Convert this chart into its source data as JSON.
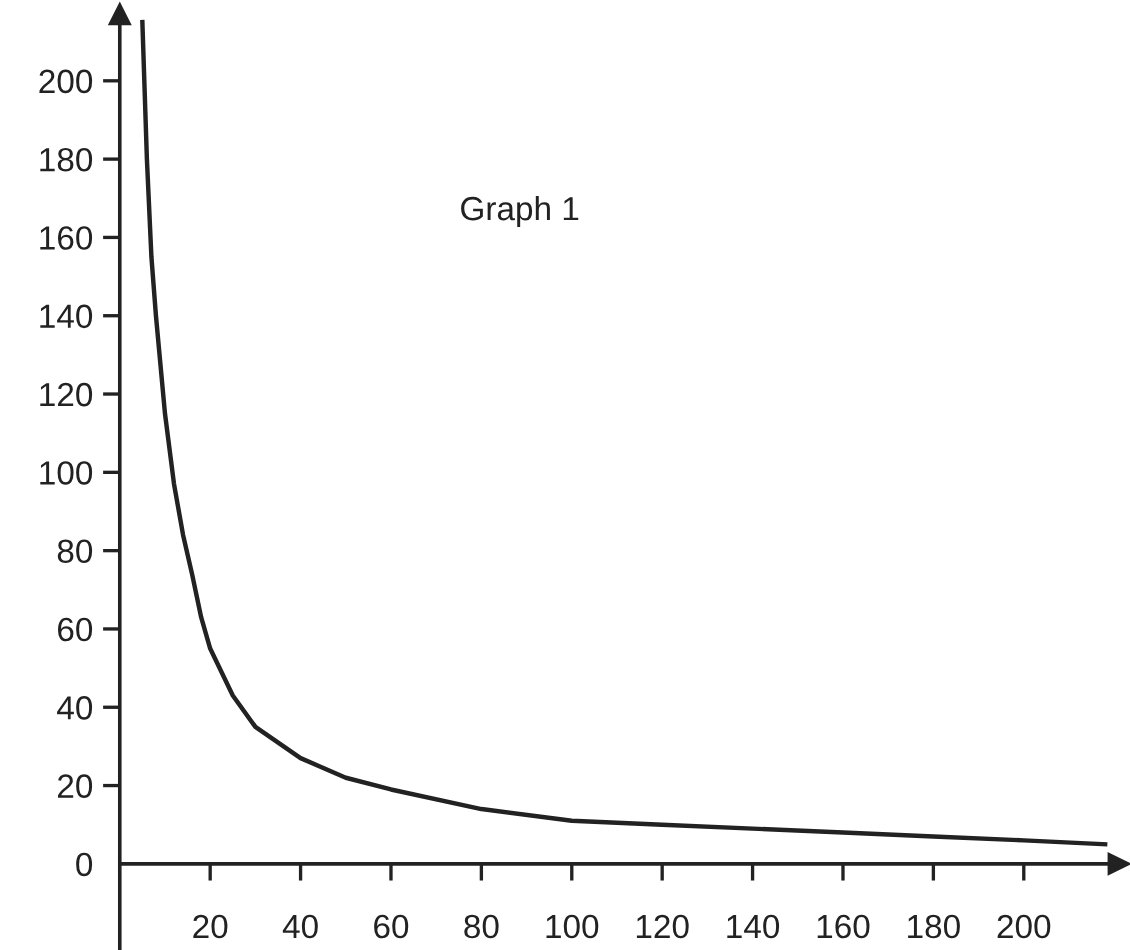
{
  "chart_data": {
    "type": "line",
    "annotations": [
      "Graph 1"
    ],
    "x": [
      5,
      6,
      7,
      8,
      10,
      12,
      14,
      16,
      18,
      20,
      25,
      30,
      40,
      50,
      60,
      80,
      100,
      120,
      140,
      160,
      180,
      200,
      218
    ],
    "series": [
      {
        "color": "#222222",
        "values": [
          215,
          180,
          155,
          140,
          115,
          97,
          84,
          74,
          63,
          55,
          43,
          35,
          27,
          22,
          19,
          14,
          11,
          10,
          9,
          8,
          7,
          6,
          5
        ]
      }
    ],
    "xlim": [
      0,
      221
    ],
    "ylim": [
      -22,
      217
    ],
    "xticks": [
      20,
      40,
      60,
      80,
      100,
      120,
      140,
      160,
      180,
      200
    ],
    "yticks": [
      0,
      20,
      40,
      60,
      80,
      100,
      120,
      140,
      160,
      180,
      200
    ],
    "grid": false,
    "legend": false,
    "marker": "none",
    "line_style": "solid"
  }
}
